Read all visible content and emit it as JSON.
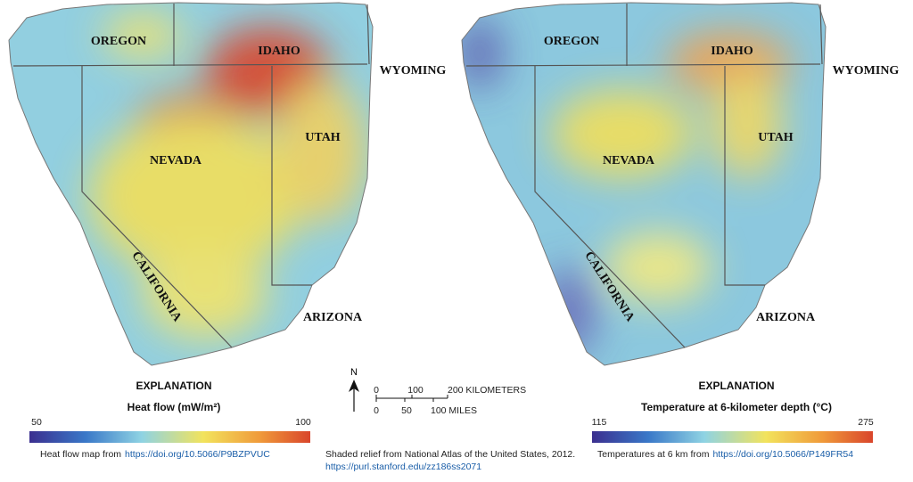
{
  "maps": [
    {
      "states": [
        "OREGON",
        "IDAHO",
        "WYOMING",
        "UTAH",
        "NEVADA",
        "CALIFORNIA",
        "ARIZONA"
      ],
      "legend": {
        "heading": "EXPLANATION",
        "title": "Heat flow (mW/m²)",
        "min": 50,
        "max": 100
      },
      "source": {
        "text": "Heat flow map  from",
        "link": "https://doi.org/10.5066/P9BZPVUC"
      }
    },
    {
      "states": [
        "OREGON",
        "IDAHO",
        "WYOMING",
        "UTAH",
        "NEVADA",
        "CALIFORNIA",
        "ARIZONA"
      ],
      "legend": {
        "heading": "EXPLANATION",
        "title": "Temperature at 6-kilometer depth (°C)",
        "min": 115,
        "max": 275
      },
      "source": {
        "text": "Temperatures at 6 km from",
        "link": "https://doi.org/10.5066/P149FR54"
      }
    }
  ],
  "scale": {
    "north": "N",
    "km_labels": [
      "0",
      "100",
      "200 KILOMETERS"
    ],
    "mile_labels": [
      "0",
      "50",
      "100 MILES"
    ]
  },
  "credit": {
    "text": "Shaded relief from National Atlas of the United States, 2012.",
    "link": "https://purl.stanford.edu/zz186ss2071"
  }
}
